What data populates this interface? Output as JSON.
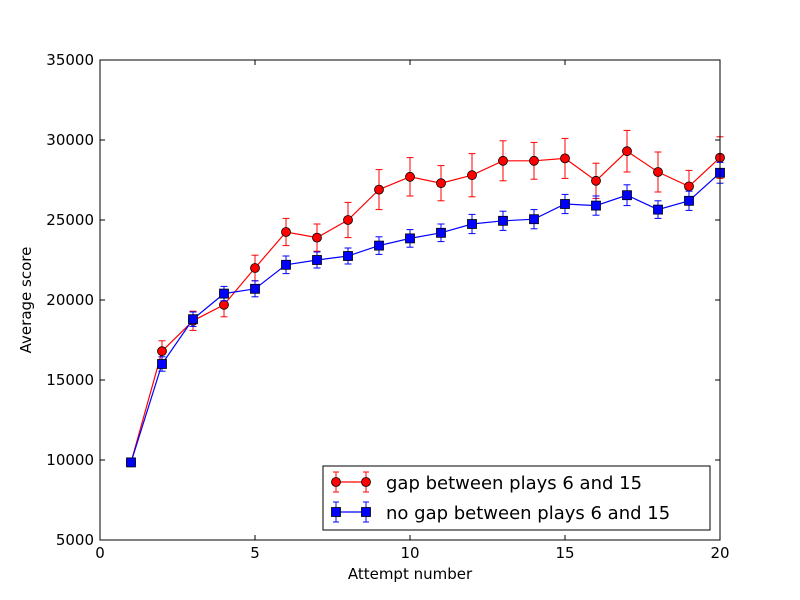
{
  "chart_data": {
    "type": "line",
    "xlabel": "Attempt number",
    "ylabel": "Average score",
    "xlim": [
      0,
      20
    ],
    "ylim": [
      5000,
      35000
    ],
    "xticks": [
      0,
      5,
      10,
      15,
      20
    ],
    "yticks": [
      5000,
      10000,
      15000,
      20000,
      25000,
      30000,
      35000
    ],
    "grid": false,
    "legend_position": "lower-right",
    "series": [
      {
        "name": "gap between plays 6 and 15",
        "color": "#ff0000",
        "marker": "circle",
        "x": [
          1,
          2,
          3,
          4,
          5,
          6,
          7,
          8,
          9,
          10,
          11,
          12,
          13,
          14,
          15,
          16,
          17,
          18,
          19,
          20
        ],
        "y": [
          9850,
          16800,
          18700,
          19700,
          22000,
          24250,
          23900,
          25000,
          26900,
          27700,
          27300,
          27800,
          28700,
          28700,
          28850,
          27450,
          29300,
          28000,
          27100,
          28900
        ],
        "err": [
          0,
          650,
          600,
          750,
          800,
          850,
          850,
          1100,
          1250,
          1200,
          1100,
          1350,
          1250,
          1150,
          1250,
          1100,
          1300,
          1250,
          1000,
          1300
        ]
      },
      {
        "name": "no gap between plays 6 and 15",
        "color": "#0000ff",
        "marker": "square",
        "x": [
          1,
          2,
          3,
          4,
          5,
          6,
          7,
          8,
          9,
          10,
          11,
          12,
          13,
          14,
          15,
          16,
          17,
          18,
          19,
          20
        ],
        "y": [
          9850,
          16000,
          18800,
          20400,
          20700,
          22200,
          22500,
          22750,
          23400,
          23850,
          24200,
          24750,
          24950,
          25050,
          26000,
          25900,
          26550,
          25650,
          26200,
          27950
        ],
        "err": [
          0,
          450,
          450,
          450,
          500,
          550,
          500,
          500,
          550,
          550,
          550,
          600,
          600,
          600,
          600,
          600,
          650,
          550,
          600,
          650
        ]
      }
    ]
  }
}
